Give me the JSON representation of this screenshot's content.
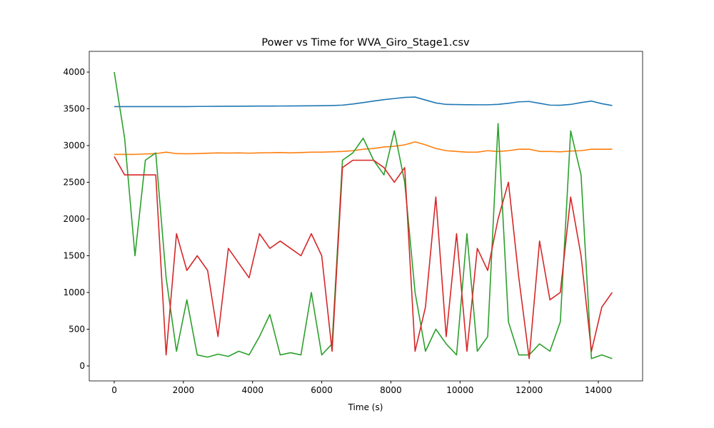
{
  "chart_data": {
    "type": "line",
    "title": "Power vs Time for WVA_Giro_Stage1.csv",
    "x_label": "Time (s)",
    "x": [
      0,
      300,
      600,
      900,
      1200,
      1500,
      1800,
      2100,
      2400,
      2700,
      3000,
      3300,
      3600,
      3900,
      4200,
      4500,
      4800,
      5100,
      5400,
      5700,
      6000,
      6300,
      6600,
      6900,
      7200,
      7500,
      7800,
      8100,
      8400,
      8700,
      9000,
      9300,
      9600,
      9900,
      10200,
      10500,
      10800,
      11100,
      11400,
      11700,
      12000,
      12300,
      12600,
      12900,
      13200,
      13500,
      13800,
      14100,
      14400
    ],
    "series": [
      {
        "color": "#1f77b4",
        "values": [
          3530,
          3530,
          3530,
          3530,
          3530,
          3530,
          3530,
          3530,
          3532,
          3533,
          3534,
          3535,
          3535,
          3536,
          3537,
          3537,
          3538,
          3539,
          3540,
          3541,
          3542,
          3545,
          3550,
          3565,
          3585,
          3605,
          3625,
          3640,
          3655,
          3660,
          3620,
          3580,
          3560,
          3558,
          3556,
          3555,
          3555,
          3560,
          3575,
          3595,
          3600,
          3575,
          3550,
          3548,
          3560,
          3585,
          3605,
          3570,
          3545
        ]
      },
      {
        "color": "#ff7f0e",
        "values": [
          2880,
          2880,
          2880,
          2885,
          2890,
          2910,
          2890,
          2888,
          2890,
          2895,
          2900,
          2898,
          2900,
          2896,
          2900,
          2902,
          2905,
          2900,
          2905,
          2910,
          2910,
          2915,
          2920,
          2930,
          2950,
          2960,
          2980,
          2990,
          3010,
          3050,
          3010,
          2960,
          2930,
          2920,
          2910,
          2910,
          2930,
          2920,
          2930,
          2950,
          2950,
          2920,
          2920,
          2915,
          2925,
          2930,
          2950,
          2950,
          2950
        ]
      },
      {
        "color": "#2ca02c",
        "values": [
          4000,
          3100,
          1500,
          2800,
          2900,
          1200,
          200,
          900,
          150,
          120,
          160,
          130,
          200,
          150,
          400,
          700,
          150,
          180,
          150,
          1000,
          150,
          300,
          2800,
          2900,
          3100,
          2800,
          2600,
          3200,
          2500,
          1000,
          200,
          500,
          300,
          150,
          1800,
          200,
          400,
          3300,
          600,
          150,
          150,
          300,
          200,
          600,
          3200,
          2600,
          100,
          150,
          100
        ]
      },
      {
        "color": "#d62728",
        "values": [
          2850,
          2600,
          2600,
          2600,
          2600,
          150,
          1800,
          1300,
          1500,
          1300,
          400,
          1600,
          1400,
          1200,
          1800,
          1600,
          1700,
          1600,
          1500,
          1800,
          1500,
          200,
          2700,
          2800,
          2800,
          2800,
          2700,
          2500,
          2700,
          200,
          800,
          2300,
          400,
          1800,
          200,
          1600,
          1300,
          2000,
          2500,
          1200,
          100,
          1700,
          900,
          1000,
          2300,
          1500,
          200,
          800,
          1000
        ]
      }
    ],
    "xlim": [
      -723,
      15280
    ],
    "ylim": [
      -204,
      4282
    ],
    "xticks": [
      0,
      2000,
      4000,
      6000,
      8000,
      10000,
      12000,
      14000
    ],
    "yticks": [
      0,
      500,
      1000,
      1500,
      2000,
      2500,
      3000,
      3500,
      4000
    ]
  }
}
